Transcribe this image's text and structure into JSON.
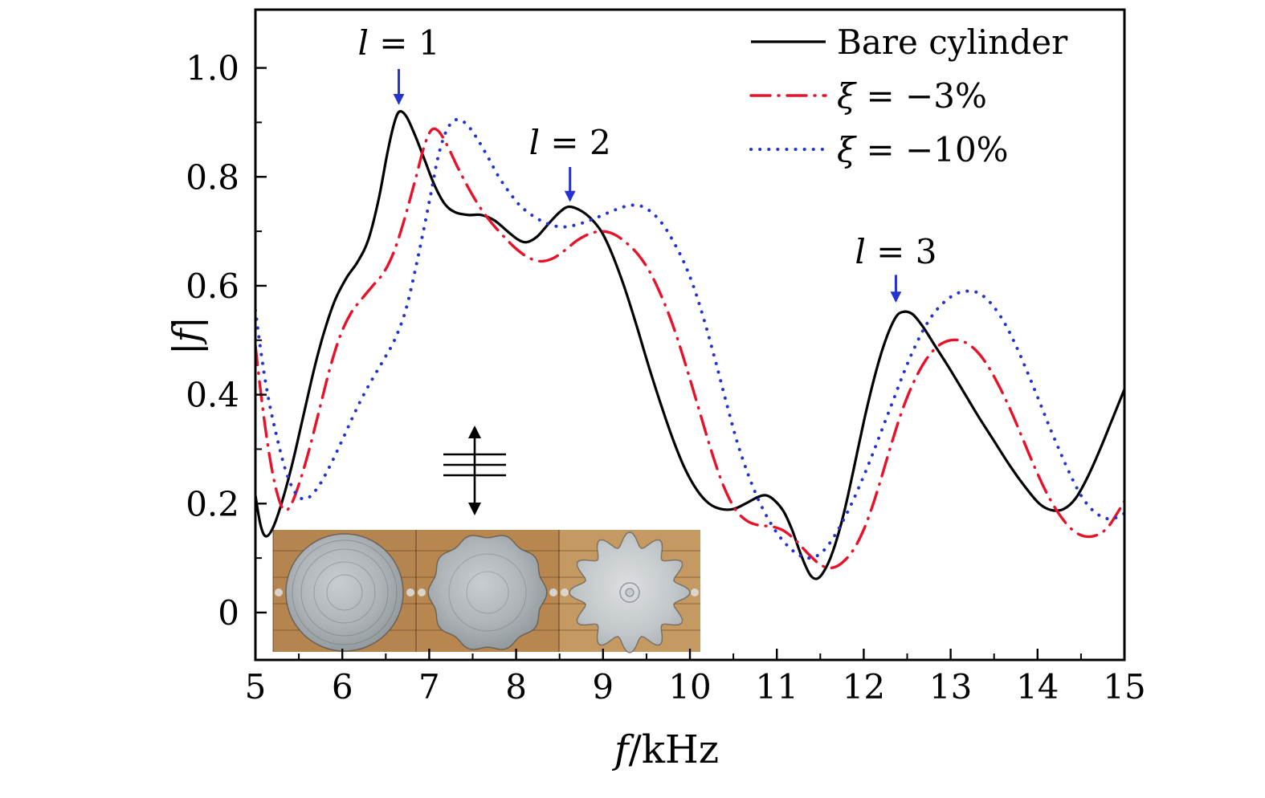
{
  "figure": {
    "background": "#ffffff",
    "axis_color": "#000000"
  },
  "chart_data": {
    "type": "line",
    "title": "",
    "xlabel": "f/kHz",
    "xlabel_parts": [
      {
        "t": "f",
        "i": 1
      },
      {
        "t": "/kHz",
        "i": 0
      }
    ],
    "ylabel": "|f|",
    "ylabel_parts": [
      {
        "t": "|",
        "i": 0
      },
      {
        "t": "f",
        "i": 1
      },
      {
        "t": "|",
        "i": 0
      }
    ],
    "xlim": [
      5,
      15
    ],
    "ylim": [
      -0.087,
      1.107
    ],
    "x_ticks": [
      5,
      6,
      7,
      8,
      9,
      10,
      11,
      12,
      13,
      14,
      15
    ],
    "x_tick_labels": [
      "5",
      "6",
      "7",
      "8",
      "9",
      "10",
      "11",
      "12",
      "13",
      "14",
      "15"
    ],
    "x_minor_ticks": [
      5.5,
      6.5,
      7.5,
      8.5,
      9.5,
      10.5,
      11.5,
      12.5,
      13.5,
      14.5
    ],
    "y_ticks": [
      0,
      0.2,
      0.4,
      0.6,
      0.8,
      1.0
    ],
    "y_tick_labels": [
      "0",
      "0.2",
      "0.4",
      "0.6",
      "0.8",
      "1.0"
    ],
    "y_minor_ticks": [
      0.1,
      0.3,
      0.5,
      0.7,
      0.9
    ],
    "grid": false,
    "legend": {
      "position": "top-right-inside",
      "entries": [
        {
          "label": "Bare cylinder",
          "parts": [
            {
              "t": "Bare cylinder",
              "i": 0
            }
          ],
          "color": "#000000",
          "line_style": "solid"
        },
        {
          "label": "ξ = −3%",
          "parts": [
            {
              "t": "ξ",
              "i": 1
            },
            {
              "t": " = −3%",
              "i": 0
            }
          ],
          "color": "#e8112a",
          "line_style": "dashdot"
        },
        {
          "label": "ξ = −10%",
          "parts": [
            {
              "t": "ξ",
              "i": 1
            },
            {
              "t": " = −10%",
              "i": 0
            }
          ],
          "color": "#2433cf",
          "line_style": "dotted"
        }
      ]
    },
    "series": [
      {
        "name": "Bare cylinder",
        "color": "#000000",
        "line_style": "solid",
        "width": 3.2,
        "points": [
          [
            5.0,
            0.215
          ],
          [
            5.06,
            0.16
          ],
          [
            5.12,
            0.14
          ],
          [
            5.2,
            0.155
          ],
          [
            5.3,
            0.2
          ],
          [
            5.42,
            0.27
          ],
          [
            5.55,
            0.36
          ],
          [
            5.68,
            0.45
          ],
          [
            5.8,
            0.52
          ],
          [
            5.92,
            0.575
          ],
          [
            6.05,
            0.615
          ],
          [
            6.18,
            0.645
          ],
          [
            6.3,
            0.685
          ],
          [
            6.42,
            0.76
          ],
          [
            6.52,
            0.845
          ],
          [
            6.6,
            0.9
          ],
          [
            6.66,
            0.92
          ],
          [
            6.74,
            0.91
          ],
          [
            6.84,
            0.875
          ],
          [
            6.95,
            0.83
          ],
          [
            7.06,
            0.785
          ],
          [
            7.18,
            0.75
          ],
          [
            7.3,
            0.735
          ],
          [
            7.45,
            0.73
          ],
          [
            7.6,
            0.73
          ],
          [
            7.75,
            0.72
          ],
          [
            7.9,
            0.7
          ],
          [
            8.02,
            0.685
          ],
          [
            8.12,
            0.68
          ],
          [
            8.24,
            0.69
          ],
          [
            8.38,
            0.715
          ],
          [
            8.5,
            0.735
          ],
          [
            8.6,
            0.745
          ],
          [
            8.72,
            0.74
          ],
          [
            8.85,
            0.725
          ],
          [
            8.98,
            0.7
          ],
          [
            9.1,
            0.66
          ],
          [
            9.24,
            0.6
          ],
          [
            9.38,
            0.53
          ],
          [
            9.52,
            0.455
          ],
          [
            9.66,
            0.385
          ],
          [
            9.8,
            0.32
          ],
          [
            9.94,
            0.265
          ],
          [
            10.08,
            0.225
          ],
          [
            10.22,
            0.2
          ],
          [
            10.36,
            0.19
          ],
          [
            10.5,
            0.19
          ],
          [
            10.64,
            0.2
          ],
          [
            10.78,
            0.212
          ],
          [
            10.88,
            0.215
          ],
          [
            10.98,
            0.205
          ],
          [
            11.08,
            0.185
          ],
          [
            11.18,
            0.15
          ],
          [
            11.28,
            0.105
          ],
          [
            11.38,
            0.07
          ],
          [
            11.46,
            0.062
          ],
          [
            11.54,
            0.075
          ],
          [
            11.64,
            0.11
          ],
          [
            11.76,
            0.175
          ],
          [
            11.88,
            0.26
          ],
          [
            12.0,
            0.35
          ],
          [
            12.12,
            0.43
          ],
          [
            12.24,
            0.495
          ],
          [
            12.36,
            0.54
          ],
          [
            12.45,
            0.552
          ],
          [
            12.56,
            0.548
          ],
          [
            12.68,
            0.525
          ],
          [
            12.82,
            0.49
          ],
          [
            12.98,
            0.45
          ],
          [
            13.15,
            0.405
          ],
          [
            13.32,
            0.36
          ],
          [
            13.5,
            0.315
          ],
          [
            13.68,
            0.27
          ],
          [
            13.86,
            0.23
          ],
          [
            14.02,
            0.2
          ],
          [
            14.16,
            0.188
          ],
          [
            14.3,
            0.19
          ],
          [
            14.44,
            0.21
          ],
          [
            14.58,
            0.25
          ],
          [
            14.72,
            0.3
          ],
          [
            14.86,
            0.355
          ],
          [
            15.0,
            0.41
          ]
        ]
      },
      {
        "name": "ξ = −3%",
        "color": "#e8112a",
        "line_style": "dashdot",
        "width": 3.4,
        "points": [
          [
            5.0,
            0.49
          ],
          [
            5.08,
            0.38
          ],
          [
            5.16,
            0.29
          ],
          [
            5.24,
            0.225
          ],
          [
            5.32,
            0.19
          ],
          [
            5.4,
            0.195
          ],
          [
            5.5,
            0.235
          ],
          [
            5.62,
            0.3
          ],
          [
            5.74,
            0.375
          ],
          [
            5.86,
            0.45
          ],
          [
            5.98,
            0.51
          ],
          [
            6.1,
            0.55
          ],
          [
            6.22,
            0.575
          ],
          [
            6.35,
            0.6
          ],
          [
            6.48,
            0.625
          ],
          [
            6.6,
            0.665
          ],
          [
            6.72,
            0.725
          ],
          [
            6.84,
            0.795
          ],
          [
            6.94,
            0.855
          ],
          [
            7.02,
            0.885
          ],
          [
            7.1,
            0.885
          ],
          [
            7.2,
            0.86
          ],
          [
            7.32,
            0.82
          ],
          [
            7.45,
            0.78
          ],
          [
            7.58,
            0.745
          ],
          [
            7.72,
            0.715
          ],
          [
            7.86,
            0.69
          ],
          [
            8.0,
            0.668
          ],
          [
            8.14,
            0.652
          ],
          [
            8.28,
            0.645
          ],
          [
            8.42,
            0.65
          ],
          [
            8.56,
            0.665
          ],
          [
            8.7,
            0.683
          ],
          [
            8.84,
            0.695
          ],
          [
            8.98,
            0.7
          ],
          [
            9.12,
            0.695
          ],
          [
            9.26,
            0.68
          ],
          [
            9.4,
            0.658
          ],
          [
            9.54,
            0.625
          ],
          [
            9.68,
            0.578
          ],
          [
            9.82,
            0.52
          ],
          [
            9.96,
            0.45
          ],
          [
            10.1,
            0.375
          ],
          [
            10.24,
            0.3
          ],
          [
            10.38,
            0.235
          ],
          [
            10.52,
            0.19
          ],
          [
            10.66,
            0.168
          ],
          [
            10.8,
            0.16
          ],
          [
            10.94,
            0.158
          ],
          [
            11.08,
            0.15
          ],
          [
            11.22,
            0.132
          ],
          [
            11.36,
            0.108
          ],
          [
            11.5,
            0.088
          ],
          [
            11.62,
            0.082
          ],
          [
            11.74,
            0.09
          ],
          [
            11.88,
            0.115
          ],
          [
            12.02,
            0.16
          ],
          [
            12.16,
            0.225
          ],
          [
            12.3,
            0.3
          ],
          [
            12.44,
            0.37
          ],
          [
            12.58,
            0.425
          ],
          [
            12.72,
            0.465
          ],
          [
            12.86,
            0.49
          ],
          [
            13.0,
            0.5
          ],
          [
            13.14,
            0.498
          ],
          [
            13.28,
            0.483
          ],
          [
            13.42,
            0.455
          ],
          [
            13.56,
            0.415
          ],
          [
            13.7,
            0.368
          ],
          [
            13.84,
            0.315
          ],
          [
            13.98,
            0.262
          ],
          [
            14.12,
            0.215
          ],
          [
            14.26,
            0.178
          ],
          [
            14.4,
            0.152
          ],
          [
            14.54,
            0.14
          ],
          [
            14.68,
            0.142
          ],
          [
            14.8,
            0.155
          ],
          [
            14.9,
            0.178
          ],
          [
            15.0,
            0.205
          ]
        ]
      },
      {
        "name": "ξ = −10%",
        "color": "#2433cf",
        "line_style": "dotted",
        "width": 4,
        "points": [
          [
            5.0,
            0.555
          ],
          [
            5.08,
            0.46
          ],
          [
            5.16,
            0.385
          ],
          [
            5.25,
            0.32
          ],
          [
            5.34,
            0.265
          ],
          [
            5.43,
            0.228
          ],
          [
            5.52,
            0.21
          ],
          [
            5.62,
            0.212
          ],
          [
            5.74,
            0.235
          ],
          [
            5.86,
            0.27
          ],
          [
            5.98,
            0.31
          ],
          [
            6.1,
            0.352
          ],
          [
            6.22,
            0.392
          ],
          [
            6.35,
            0.43
          ],
          [
            6.48,
            0.465
          ],
          [
            6.6,
            0.5
          ],
          [
            6.72,
            0.55
          ],
          [
            6.82,
            0.615
          ],
          [
            6.92,
            0.69
          ],
          [
            7.02,
            0.77
          ],
          [
            7.1,
            0.835
          ],
          [
            7.18,
            0.878
          ],
          [
            7.26,
            0.9
          ],
          [
            7.34,
            0.905
          ],
          [
            7.44,
            0.895
          ],
          [
            7.56,
            0.868
          ],
          [
            7.68,
            0.835
          ],
          [
            7.8,
            0.8
          ],
          [
            7.92,
            0.772
          ],
          [
            8.04,
            0.748
          ],
          [
            8.16,
            0.732
          ],
          [
            8.28,
            0.72
          ],
          [
            8.4,
            0.712
          ],
          [
            8.52,
            0.708
          ],
          [
            8.64,
            0.71
          ],
          [
            8.76,
            0.715
          ],
          [
            8.88,
            0.722
          ],
          [
            9.0,
            0.73
          ],
          [
            9.12,
            0.738
          ],
          [
            9.24,
            0.745
          ],
          [
            9.35,
            0.748
          ],
          [
            9.46,
            0.745
          ],
          [
            9.58,
            0.732
          ],
          [
            9.7,
            0.71
          ],
          [
            9.82,
            0.678
          ],
          [
            9.94,
            0.64
          ],
          [
            10.06,
            0.59
          ],
          [
            10.18,
            0.528
          ],
          [
            10.3,
            0.458
          ],
          [
            10.42,
            0.385
          ],
          [
            10.54,
            0.315
          ],
          [
            10.66,
            0.258
          ],
          [
            10.78,
            0.21
          ],
          [
            10.9,
            0.172
          ],
          [
            11.02,
            0.142
          ],
          [
            11.14,
            0.12
          ],
          [
            11.26,
            0.105
          ],
          [
            11.38,
            0.1
          ],
          [
            11.5,
            0.108
          ],
          [
            11.62,
            0.13
          ],
          [
            11.74,
            0.162
          ],
          [
            11.86,
            0.2
          ],
          [
            11.98,
            0.243
          ],
          [
            12.1,
            0.29
          ],
          [
            12.22,
            0.34
          ],
          [
            12.34,
            0.39
          ],
          [
            12.46,
            0.44
          ],
          [
            12.58,
            0.485
          ],
          [
            12.7,
            0.523
          ],
          [
            12.82,
            0.552
          ],
          [
            12.94,
            0.572
          ],
          [
            13.06,
            0.585
          ],
          [
            13.18,
            0.59
          ],
          [
            13.3,
            0.588
          ],
          [
            13.42,
            0.575
          ],
          [
            13.54,
            0.552
          ],
          [
            13.66,
            0.52
          ],
          [
            13.78,
            0.48
          ],
          [
            13.9,
            0.435
          ],
          [
            14.02,
            0.388
          ],
          [
            14.14,
            0.34
          ],
          [
            14.26,
            0.295
          ],
          [
            14.38,
            0.252
          ],
          [
            14.5,
            0.215
          ],
          [
            14.62,
            0.19
          ],
          [
            14.74,
            0.176
          ],
          [
            14.86,
            0.172
          ],
          [
            15.0,
            0.182
          ]
        ]
      }
    ],
    "annotations": [
      {
        "text": "l = 1",
        "parts": [
          {
            "t": "l",
            "i": 1
          },
          {
            "t": " = 1",
            "i": 0
          }
        ],
        "x": 6.65,
        "text_y": 1.045,
        "arrow_from_y": 0.998,
        "arrow_to_y": 0.935,
        "color": "#2433cf"
      },
      {
        "text": "l = 2",
        "parts": [
          {
            "t": "l",
            "i": 1
          },
          {
            "t": " = 2",
            "i": 0
          }
        ],
        "x": 8.62,
        "text_y": 0.862,
        "arrow_from_y": 0.818,
        "arrow_to_y": 0.757,
        "color": "#2433cf"
      },
      {
        "text": "l = 3",
        "parts": [
          {
            "t": "l",
            "i": 1
          },
          {
            "t": " = 3",
            "i": 0
          }
        ],
        "x": 12.37,
        "text_y": 0.662,
        "arrow_from_y": 0.62,
        "arrow_to_y": 0.572,
        "color": "#2433cf"
      }
    ]
  },
  "inset": {
    "wood_colors": [
      "#b5854f",
      "#b8874f",
      "#c59a62"
    ],
    "disc_base_color": "#aeb4b7",
    "samples": [
      "bare-cylinder-photo",
      "corrugated-cylinder-3pct-photo",
      "corrugated-cylinder-10pct-photo"
    ]
  }
}
